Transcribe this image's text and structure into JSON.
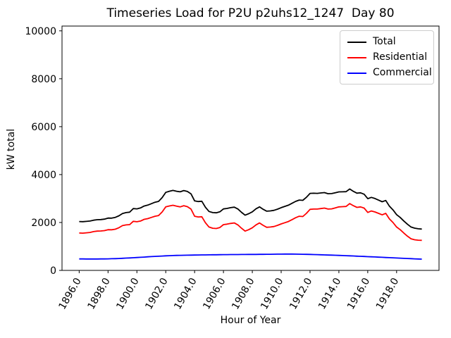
{
  "chart_data": {
    "type": "line",
    "title": "Timeseries Load for P2U p2uhs12_1247  Day 80",
    "xlabel": "Hour of Year",
    "ylabel": "kW total",
    "grid": false,
    "xlim": [
      1894.81,
      1920.94
    ],
    "ylim": [
      0,
      10200
    ],
    "x_ticks": [
      1896,
      1898,
      1900,
      1902,
      1904,
      1906,
      1908,
      1910,
      1912,
      1914,
      1916,
      1918
    ],
    "x_tick_labels": [
      "1896.0",
      "1898.0",
      "1900.0",
      "1902.0",
      "1904.0",
      "1906.0",
      "1908.0",
      "1910.0",
      "1912.0",
      "1914.0",
      "1916.0",
      "1918.0"
    ],
    "y_ticks": [
      0,
      2000,
      4000,
      6000,
      8000,
      10000
    ],
    "y_tick_labels": [
      "0",
      "2000",
      "4000",
      "6000",
      "8000",
      "10000"
    ],
    "legend": {
      "position": "upper right"
    },
    "x": [
      1896.0,
      1896.25,
      1896.5,
      1896.75,
      1897.0,
      1897.25,
      1897.5,
      1897.75,
      1898.0,
      1898.25,
      1898.5,
      1898.75,
      1899.0,
      1899.25,
      1899.5,
      1899.75,
      1900.0,
      1900.25,
      1900.5,
      1900.75,
      1901.0,
      1901.25,
      1901.5,
      1901.75,
      1902.0,
      1902.25,
      1902.5,
      1902.75,
      1903.0,
      1903.25,
      1903.5,
      1903.75,
      1904.0,
      1904.25,
      1904.5,
      1904.75,
      1905.0,
      1905.25,
      1905.5,
      1905.75,
      1906.0,
      1906.25,
      1906.5,
      1906.75,
      1907.0,
      1907.25,
      1907.5,
      1907.75,
      1908.0,
      1908.25,
      1908.5,
      1908.75,
      1909.0,
      1909.25,
      1909.5,
      1909.75,
      1910.0,
      1910.25,
      1910.5,
      1910.75,
      1911.0,
      1911.25,
      1911.5,
      1911.75,
      1912.0,
      1912.25,
      1912.5,
      1912.75,
      1913.0,
      1913.25,
      1913.5,
      1913.75,
      1914.0,
      1914.25,
      1914.5,
      1914.75,
      1915.0,
      1915.25,
      1915.5,
      1915.75,
      1916.0,
      1916.25,
      1916.5,
      1916.75,
      1917.0,
      1917.25,
      1917.5,
      1917.75,
      1918.0,
      1918.25,
      1918.5,
      1918.75,
      1919.0,
      1919.25,
      1919.5,
      1919.75
    ],
    "series": [
      {
        "name": "Total",
        "color": "#000000",
        "values": [
          2040,
          2033,
          2047,
          2061,
          2096,
          2117,
          2123,
          2140,
          2183,
          2182,
          2212,
          2278,
          2375,
          2413,
          2431,
          2580,
          2569,
          2608,
          2687,
          2726,
          2785,
          2844,
          2882,
          3040,
          3258,
          3304,
          3340,
          3305,
          3279,
          3333,
          3296,
          3199,
          2902,
          2874,
          2886,
          2638,
          2460,
          2412,
          2404,
          2445,
          2567,
          2588,
          2620,
          2641,
          2562,
          2424,
          2305,
          2366,
          2447,
          2568,
          2650,
          2551,
          2472,
          2484,
          2506,
          2558,
          2620,
          2672,
          2723,
          2802,
          2880,
          2937,
          2924,
          3050,
          3216,
          3222,
          3217,
          3232,
          3247,
          3202,
          3207,
          3242,
          3277,
          3281,
          3285,
          3399,
          3302,
          3225,
          3238,
          3181,
          2994,
          3047,
          3000,
          2933,
          2866,
          2919,
          2682,
          2525,
          2328,
          2211,
          2064,
          1927,
          1810,
          1763,
          1736,
          1725
        ]
      },
      {
        "name": "Residential",
        "color": "#ff0000",
        "values": [
          1560,
          1555,
          1570,
          1585,
          1620,
          1640,
          1645,
          1660,
          1700,
          1695,
          1720,
          1780,
          1870,
          1900,
          1910,
          2050,
          2030,
          2060,
          2130,
          2160,
          2210,
          2260,
          2290,
          2440,
          2650,
          2690,
          2720,
          2680,
          2650,
          2700,
          2660,
          2560,
          2260,
          2230,
          2240,
          1990,
          1810,
          1760,
          1750,
          1790,
          1910,
          1930,
          1960,
          1980,
          1900,
          1760,
          1640,
          1700,
          1780,
          1900,
          1980,
          1880,
          1800,
          1810,
          1830,
          1880,
          1940,
          1990,
          2040,
          2120,
          2200,
          2260,
          2250,
          2380,
          2550,
          2560,
          2560,
          2580,
          2600,
          2560,
          2570,
          2610,
          2650,
          2660,
          2670,
          2790,
          2700,
          2630,
          2650,
          2600,
          2420,
          2480,
          2440,
          2380,
          2320,
          2380,
          2150,
          2000,
          1810,
          1700,
          1560,
          1430,
          1320,
          1280,
          1260,
          1255
        ]
      },
      {
        "name": "Commercial",
        "color": "#0000ff",
        "values": [
          480,
          478,
          477,
          476,
          476,
          477,
          478,
          480,
          483,
          487,
          492,
          498,
          505,
          513,
          521,
          530,
          539,
          548,
          557,
          566,
          575,
          584,
          592,
          600,
          608,
          614,
          620,
          625,
          629,
          633,
          636,
          639,
          642,
          644,
          646,
          648,
          650,
          652,
          654,
          655,
          657,
          658,
          660,
          661,
          662,
          664,
          665,
          666,
          667,
          668,
          670,
          671,
          672,
          674,
          676,
          678,
          680,
          682,
          683,
          682,
          680,
          677,
          674,
          670,
          666,
          662,
          657,
          652,
          647,
          642,
          637,
          632,
          627,
          621,
          615,
          609,
          602,
          595,
          588,
          581,
          574,
          567,
          560,
          553,
          546,
          539,
          532,
          525,
          518,
          511,
          504,
          497,
          490,
          483,
          476,
          470
        ]
      }
    ]
  }
}
